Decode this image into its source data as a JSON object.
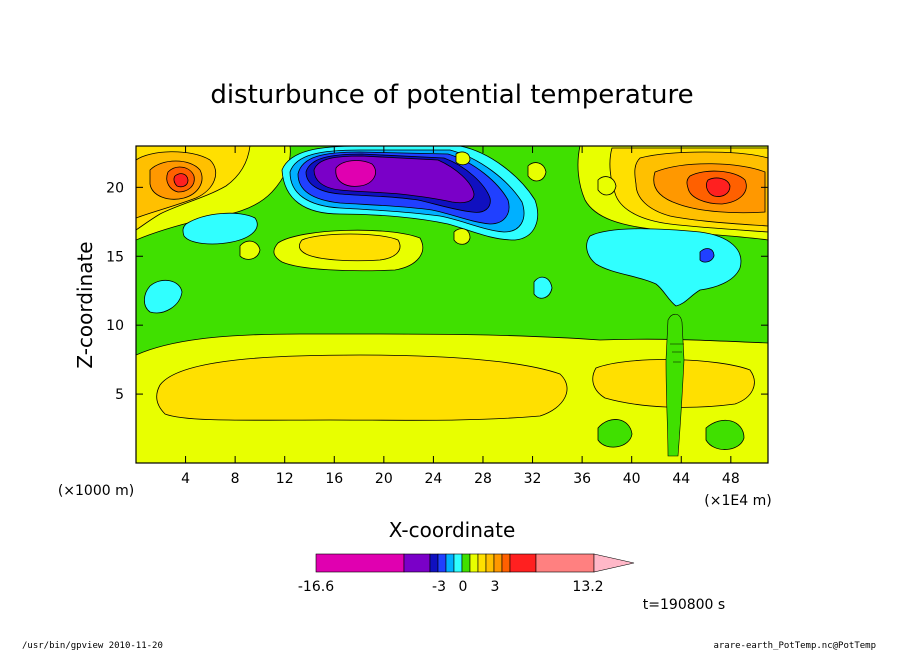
{
  "chart_data": {
    "type": "heatmap",
    "title": "disturbunce of potential temperature",
    "xlabel": "X-coordinate",
    "ylabel": "Z-coordinate",
    "x_unit_note": "(×1E4 m)",
    "y_unit_note": "(×1000 m)",
    "xlim": [
      0,
      51
    ],
    "ylim": [
      0,
      23
    ],
    "xticks": [
      4,
      8,
      12,
      16,
      20,
      24,
      28,
      32,
      36,
      40,
      44,
      48
    ],
    "yticks": [
      5,
      10,
      15,
      20
    ],
    "time_label": "t=190800 s",
    "colorbar": {
      "ticks": [
        "-16.6",
        "-3",
        "0",
        "3",
        "13.2"
      ],
      "bins": [
        {
          "color": "#e000b0"
        },
        {
          "color": "#7a00c8"
        },
        {
          "color": "#1010c0"
        },
        {
          "color": "#2040ff"
        },
        {
          "color": "#00b0ff"
        },
        {
          "color": "#30ffff"
        },
        {
          "color": "#40e000"
        },
        {
          "color": "#e8ff00"
        },
        {
          "color": "#ffe000"
        },
        {
          "color": "#ffc000"
        },
        {
          "color": "#ff9800"
        },
        {
          "color": "#ff6000"
        },
        {
          "color": "#ff2020"
        },
        {
          "color": "#ff8080"
        },
        {
          "color": "#ffb8c8"
        }
      ]
    },
    "features": [
      {
        "name": "strong negative core",
        "x": [
          15,
          28
        ],
        "z": [
          18.5,
          22.5
        ],
        "value_range": [
          -16.6,
          -3
        ]
      },
      {
        "name": "warm layer aloft left",
        "x": [
          0,
          6
        ],
        "z": [
          17,
          22.5
        ],
        "value_range": [
          3,
          8
        ]
      },
      {
        "name": "warm layer aloft right",
        "x": [
          39,
          51
        ],
        "z": [
          17,
          22.5
        ],
        "value_range": [
          3,
          8
        ]
      },
      {
        "name": "neutral mid layer",
        "x": [
          0,
          51
        ],
        "z": [
          9,
          15
        ],
        "value_range": [
          -1,
          0
        ]
      },
      {
        "name": "low-level warm band",
        "x": [
          3,
          33
        ],
        "z": [
          3.5,
          7
        ],
        "value_range": [
          1,
          2
        ]
      }
    ]
  },
  "footer": {
    "left": "/usr/bin/gpview   2010-11-20",
    "right": "arare-earth_PotTemp.nc@PotTemp"
  }
}
